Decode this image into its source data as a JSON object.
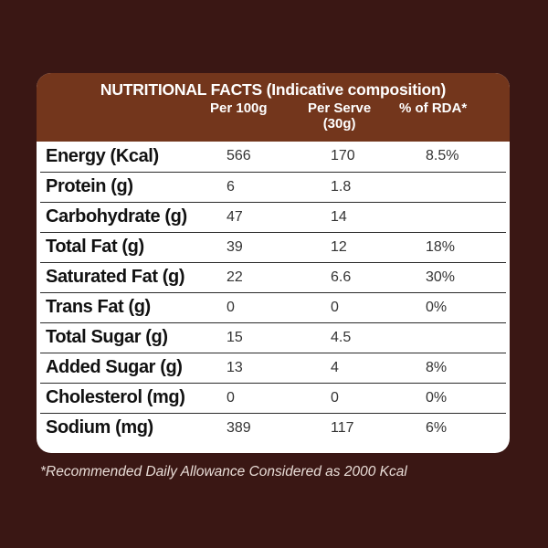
{
  "header": {
    "title": "NUTRITIONAL FACTS (Indicative composition)",
    "col_per100": "Per 100g",
    "col_serve_line1": "Per Serve",
    "col_serve_line2": "(30g)",
    "col_rda": "% of RDA*"
  },
  "rows": [
    {
      "label": "Energy (Kcal)",
      "per100": "566",
      "serve": "170",
      "rda": "8.5%"
    },
    {
      "label": "Protein (g)",
      "per100": "6",
      "serve": "1.8",
      "rda": ""
    },
    {
      "label": "Carbohydrate (g)",
      "per100": "47",
      "serve": "14",
      "rda": ""
    },
    {
      "label": "Total Fat (g)",
      "per100": "39",
      "serve": "12",
      "rda": "18%"
    },
    {
      "label": "Saturated Fat (g)",
      "per100": "22",
      "serve": "6.6",
      "rda": "30%"
    },
    {
      "label": "Trans Fat (g)",
      "per100": "0",
      "serve": "0",
      "rda": "0%"
    },
    {
      "label": "Total Sugar (g)",
      "per100": "15",
      "serve": "4.5",
      "rda": ""
    },
    {
      "label": "Added Sugar (g)",
      "per100": "13",
      "serve": "4",
      "rda": "8%"
    },
    {
      "label": "Cholesterol (mg)",
      "per100": "0",
      "serve": "0",
      "rda": "0%"
    },
    {
      "label": "Sodium (mg)",
      "per100": "389",
      "serve": "117",
      "rda": "6%"
    }
  ],
  "footnote": "*Recommended Daily Allowance Considered as 2000 Kcal",
  "colors": {
    "background": "#3a1714",
    "header": "#73361c"
  }
}
